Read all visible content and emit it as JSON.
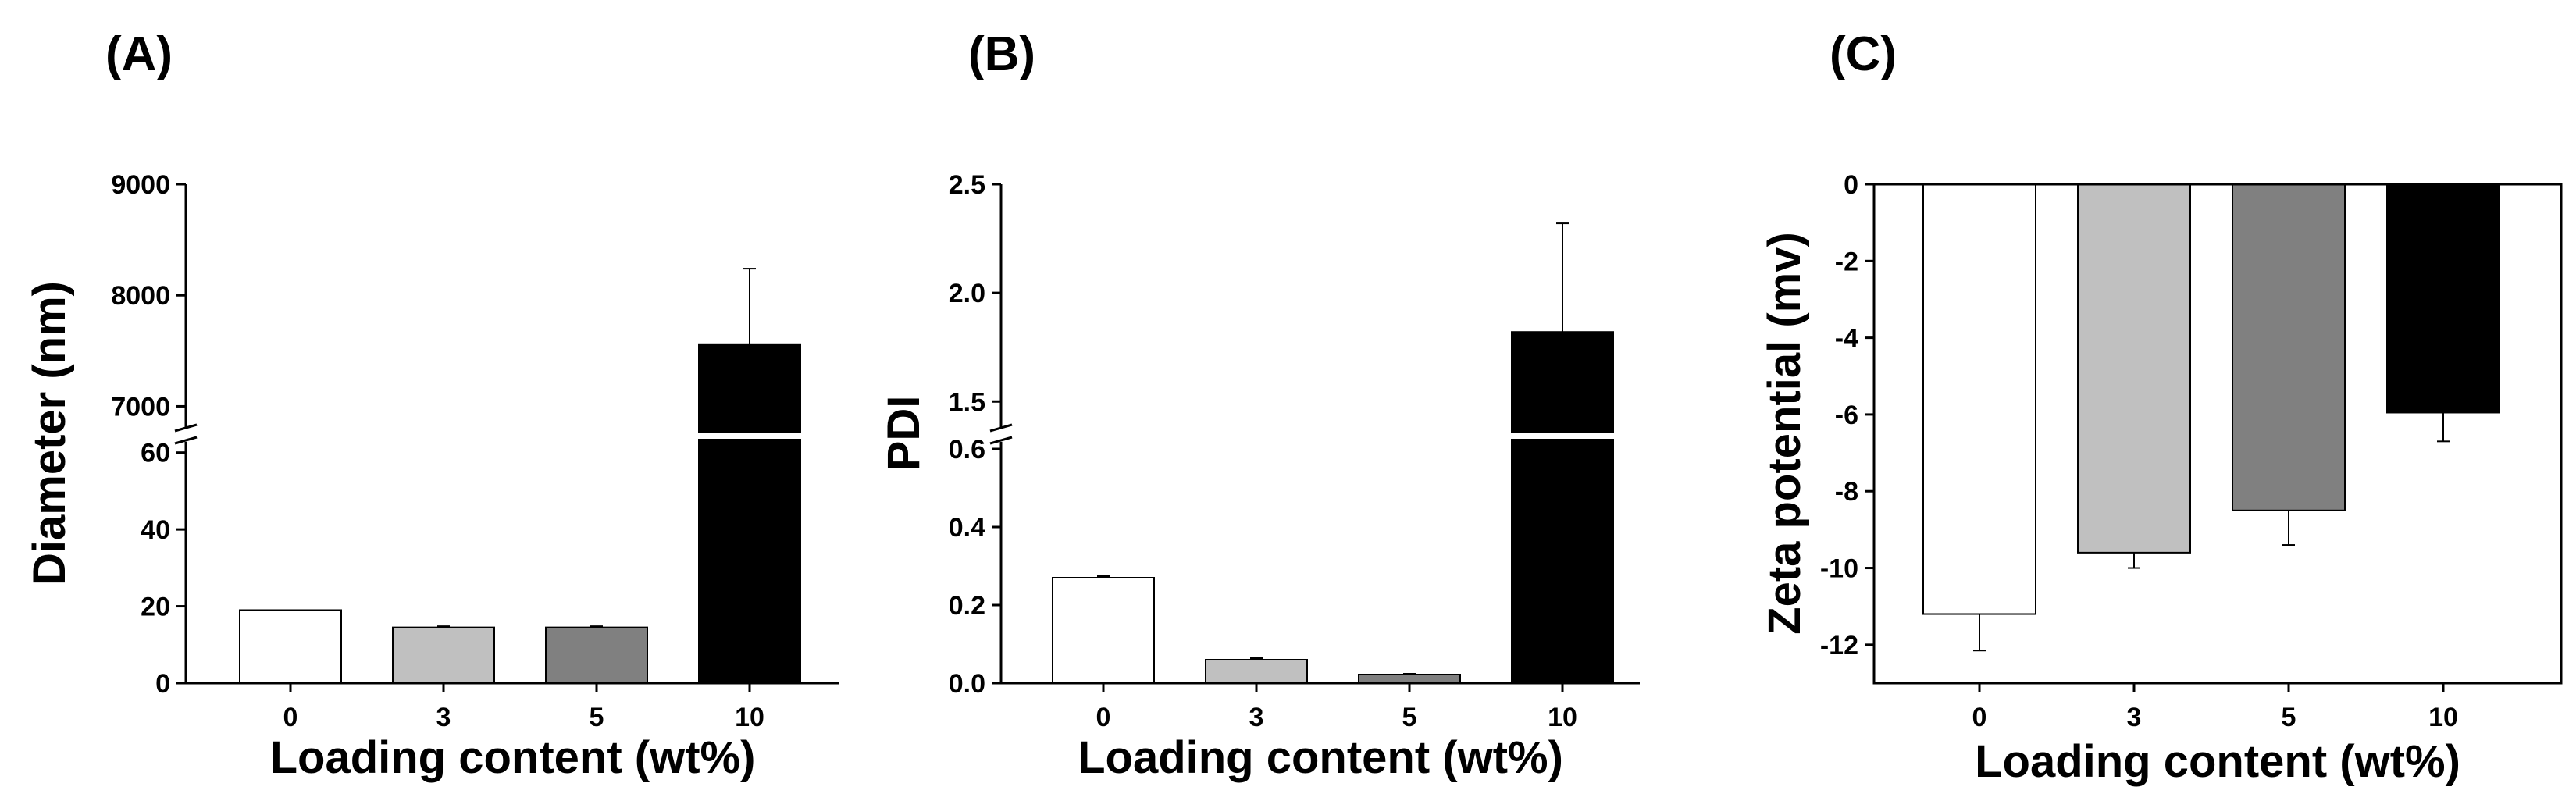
{
  "chart_data": [
    {
      "type": "bar",
      "panel_label": "(A)",
      "xlabel": "Loading content (wt%)",
      "ylabel": "Diameter (nm)",
      "categories": [
        "0",
        "3",
        "5",
        "10"
      ],
      "values": [
        19,
        14.5,
        14.5,
        7560
      ],
      "errors": [
        0,
        0.3,
        0.3,
        680
      ],
      "colors": [
        "#ffffff",
        "#c0c0c0",
        "#808080",
        "#000000"
      ],
      "axis_break": true,
      "ylim_lower": [
        0,
        64
      ],
      "ylim_upper": [
        6750,
        9000
      ],
      "yticks_lower": [
        "0",
        "20",
        "40",
        "60"
      ],
      "yticks_upper": [
        "7000",
        "8000",
        "9000"
      ],
      "grid": false
    },
    {
      "type": "bar",
      "panel_label": "(B)",
      "xlabel": "Loading content (wt%)",
      "ylabel": "PDI",
      "categories": [
        "0",
        "3",
        "5",
        "10"
      ],
      "values": [
        0.27,
        0.06,
        0.022,
        1.82
      ],
      "errors": [
        0.004,
        0.004,
        0.002,
        0.5
      ],
      "colors": [
        "#ffffff",
        "#c0c0c0",
        "#808080",
        "#000000"
      ],
      "axis_break": true,
      "ylim_lower": [
        0,
        0.63
      ],
      "ylim_upper": [
        1.35,
        2.5
      ],
      "yticks_lower": [
        "0.0",
        "0.2",
        "0.4",
        "0.6"
      ],
      "yticks_upper": [
        "1.5",
        "2.0",
        "2.5"
      ],
      "grid": false
    },
    {
      "type": "bar",
      "panel_label": "(C)",
      "xlabel": "Loading content (wt%)",
      "ylabel": "Zeta potential (mv)",
      "categories": [
        "0",
        "3",
        "5",
        "10"
      ],
      "values": [
        -11.2,
        -9.6,
        -8.5,
        -5.95
      ],
      "errors": [
        0.95,
        0.4,
        0.9,
        0.75
      ],
      "colors": [
        "#ffffff",
        "#c0c0c0",
        "#808080",
        "#000000"
      ],
      "ylim": [
        -13,
        0
      ],
      "yticks": [
        "0",
        "-2",
        "-4",
        "-6",
        "-8",
        "-10",
        "-12"
      ],
      "grid": false,
      "frame": "box"
    }
  ]
}
